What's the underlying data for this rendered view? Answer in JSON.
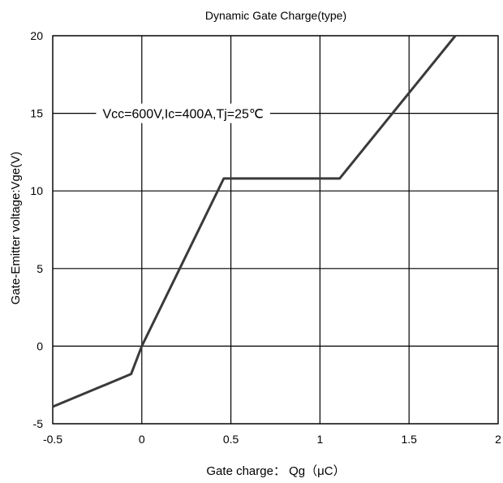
{
  "chart_data": {
    "type": "line",
    "title": "Dynamic Gate Charge(type)",
    "xlabel": "Gate charge： Qg（μC）",
    "ylabel": "Gate-Emitter voltage:Vge(V)",
    "xlim": [
      -0.5,
      2
    ],
    "ylim": [
      -5,
      20
    ],
    "x_ticks": [
      "-0.5",
      "0",
      "0.5",
      "1",
      "1.5",
      "2"
    ],
    "y_ticks": [
      "-5",
      "0",
      "5",
      "10",
      "15",
      "20"
    ],
    "grid": true,
    "annotation": "Vcc=600V,Ic=400A,Tj=25℃",
    "series": [
      {
        "x": [
          -0.5,
          -0.06,
          0,
          0.46,
          1.11,
          1.76
        ],
        "y": [
          -3.9,
          -1.8,
          0,
          10.8,
          10.8,
          20
        ]
      }
    ],
    "colors": {
      "line": "#3a3a3a",
      "grid": "#000000"
    }
  }
}
